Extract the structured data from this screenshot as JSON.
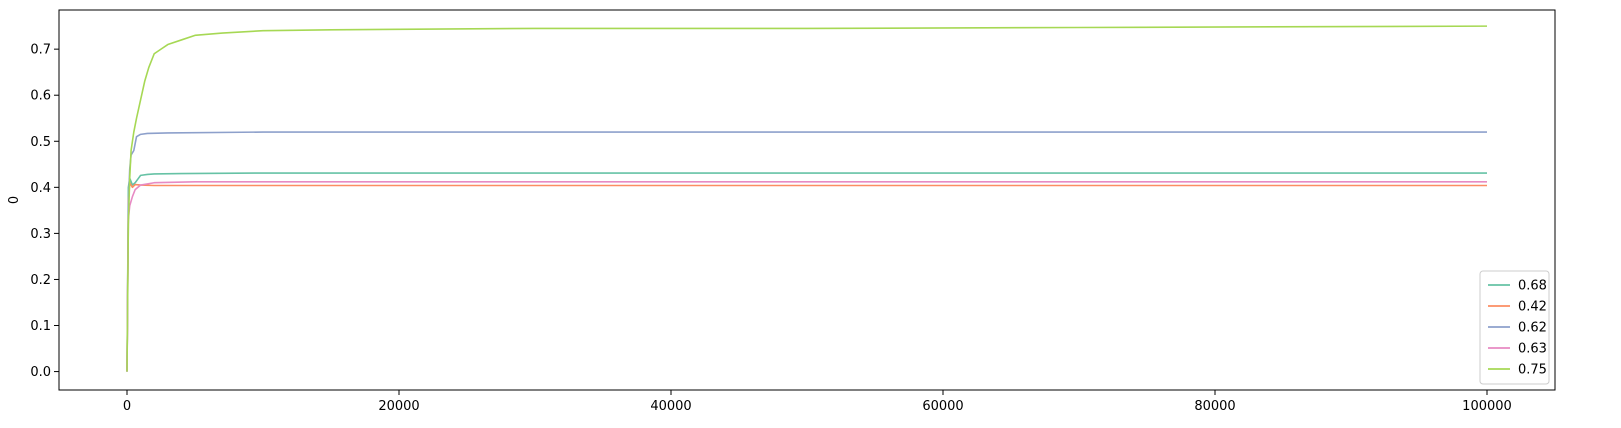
{
  "chart_data": {
    "type": "line",
    "title": "",
    "xlabel": "",
    "ylabel": "0",
    "xlim": [
      -5000,
      105000
    ],
    "ylim": [
      -0.04,
      0.785
    ],
    "xticks": [
      0,
      20000,
      40000,
      60000,
      80000,
      100000
    ],
    "xtick_labels": [
      "0",
      "20000",
      "40000",
      "60000",
      "80000",
      "100000"
    ],
    "yticks": [
      0.0,
      0.1,
      0.2,
      0.3,
      0.4,
      0.5,
      0.6,
      0.7
    ],
    "ytick_labels": [
      "0.0",
      "0.1",
      "0.2",
      "0.3",
      "0.4",
      "0.5",
      "0.6",
      "0.7"
    ],
    "grid": false,
    "legend_position": "lower-right",
    "series": [
      {
        "name": "0.68",
        "color": "#66c2a5",
        "x": [
          0,
          100,
          200,
          400,
          600,
          800,
          1000,
          1500,
          2000,
          4000,
          10000,
          40000,
          100000
        ],
        "y": [
          0.0,
          0.4,
          0.42,
          0.405,
          0.41,
          0.418,
          0.426,
          0.428,
          0.429,
          0.43,
          0.431,
          0.431,
          0.431
        ]
      },
      {
        "name": "0.42",
        "color": "#fc8d62",
        "x": [
          0,
          100,
          200,
          400,
          600,
          1000,
          2000,
          5000,
          20000,
          100000
        ],
        "y": [
          0.0,
          0.37,
          0.41,
          0.4,
          0.406,
          0.405,
          0.404,
          0.404,
          0.404,
          0.404
        ]
      },
      {
        "name": "0.62",
        "color": "#8da0cb",
        "x": [
          0,
          100,
          200,
          300,
          500,
          700,
          1000,
          1500,
          3000,
          10000,
          100000
        ],
        "y": [
          0.0,
          0.36,
          0.44,
          0.47,
          0.48,
          0.51,
          0.515,
          0.517,
          0.518,
          0.52,
          0.52
        ]
      },
      {
        "name": "0.63",
        "color": "#e78ac3",
        "x": [
          0,
          100,
          200,
          400,
          600,
          1000,
          2000,
          5000,
          100000
        ],
        "y": [
          0.0,
          0.33,
          0.36,
          0.38,
          0.395,
          0.405,
          0.41,
          0.412,
          0.412
        ]
      },
      {
        "name": "0.75",
        "color": "#a6d854",
        "x": [
          0,
          100,
          200,
          300,
          500,
          700,
          1000,
          1300,
          1600,
          2000,
          2500,
          3000,
          4000,
          5000,
          7000,
          10000,
          15000,
          20000,
          30000,
          50000,
          70000,
          100000
        ],
        "y": [
          0.0,
          0.32,
          0.42,
          0.48,
          0.52,
          0.55,
          0.59,
          0.63,
          0.66,
          0.69,
          0.7,
          0.71,
          0.72,
          0.73,
          0.735,
          0.74,
          0.742,
          0.743,
          0.745,
          0.745,
          0.747,
          0.75
        ]
      }
    ]
  }
}
